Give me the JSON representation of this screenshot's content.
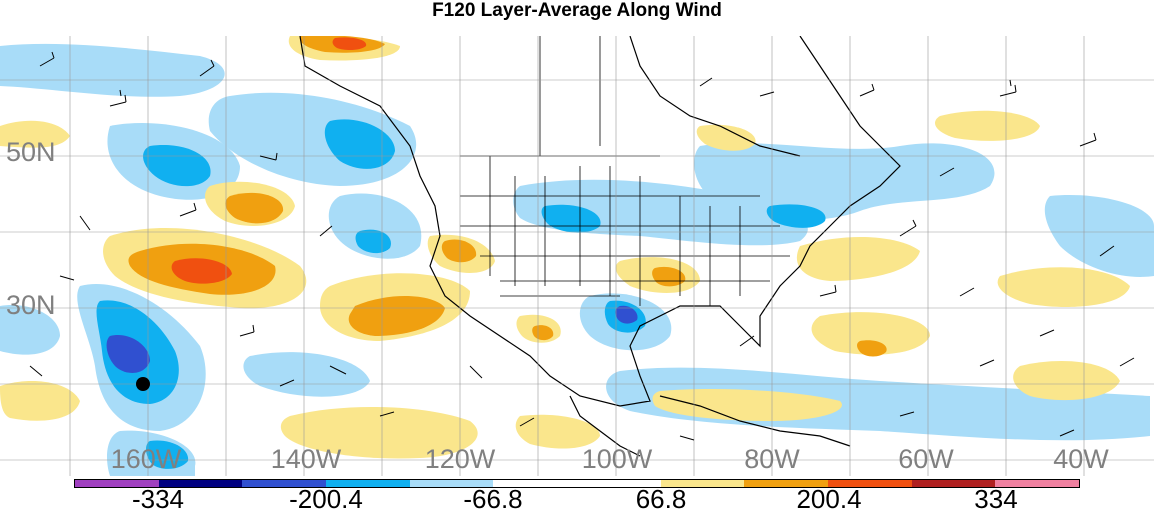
{
  "title": "F120 Layer-Average Along Wind",
  "lat_labels": [
    "50N",
    "30N"
  ],
  "lon_labels": [
    "160W",
    "140W",
    "120W",
    "100W",
    "80W",
    "60W",
    "40W"
  ],
  "colorbar": {
    "colors": [
      "#a040c0",
      "#000080",
      "#3050d0",
      "#10b0f0",
      "#a8dcf8",
      "#ffffff",
      "#ffffff",
      "#fae68c",
      "#f0a010",
      "#f05010",
      "#b02020",
      "#f080a0"
    ],
    "labels": [
      "-334",
      "-200.4",
      "-66.8",
      "66.8",
      "200.4",
      "334"
    ]
  },
  "regions": [
    {
      "name": "negative-wind-region",
      "fill": "#a8dcf8"
    },
    {
      "name": "strong-negative-region",
      "fill": "#10b0f0"
    },
    {
      "name": "very-strong-negative-region",
      "fill": "#3050d0"
    },
    {
      "name": "positive-wind-region",
      "fill": "#fae68c"
    },
    {
      "name": "strong-positive-region",
      "fill": "#f0a010"
    },
    {
      "name": "very-strong-positive-region",
      "fill": "#f05010"
    }
  ]
}
